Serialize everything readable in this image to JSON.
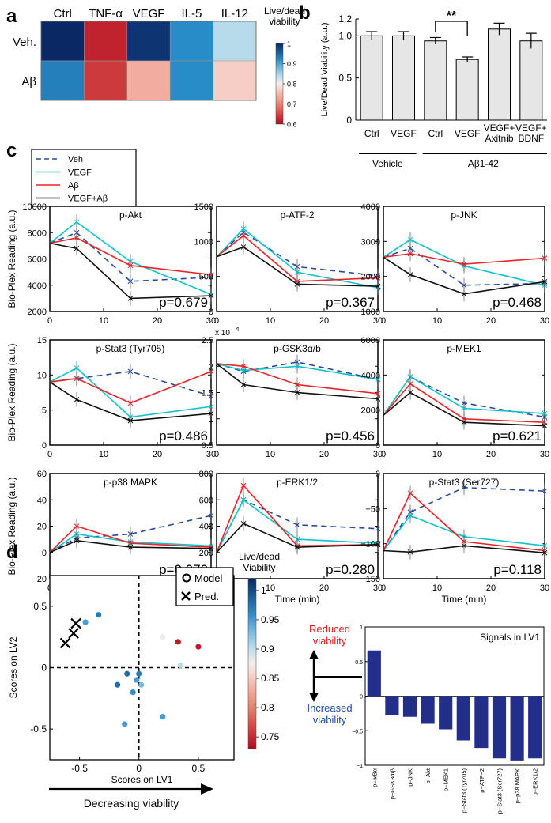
{
  "panel_labels": {
    "a": "a",
    "b": "b",
    "c": "c",
    "d": "d"
  },
  "colors": {
    "veh": "#2c4a9a",
    "vegf": "#12c2c8",
    "abeta": "#e8232a",
    "vegf_abeta": "#111111",
    "bar_grey": "#e6e6e6",
    "lv1_bar": "#232d8a",
    "reduced_red": "#d42020",
    "increased_blue": "#1f4ea0"
  },
  "chart_data": [
    {
      "id": "a",
      "type": "heatmap",
      "columns": [
        "Ctrl",
        "TNF-α",
        "VEGF",
        "IL-5",
        "IL-12"
      ],
      "rows": [
        "Veh.",
        "Aβ"
      ],
      "values": [
        [
          1.0,
          0.62,
          0.99,
          0.92,
          0.84
        ],
        [
          0.93,
          0.64,
          0.74,
          0.92,
          0.77
        ]
      ],
      "colorbar": {
        "title": [
          "Live/dead",
          "viability"
        ],
        "ticks": [
          "1",
          "0.9",
          "0.8",
          "0.7",
          "0.6"
        ],
        "tick_values": [
          1.0,
          0.9,
          0.8,
          0.7,
          0.6
        ],
        "range": [
          0.6,
          1.0
        ]
      }
    },
    {
      "id": "b",
      "type": "bar",
      "categories": [
        "Ctrl",
        "VEGF",
        "Ctrl",
        "VEGF",
        "VEGF+\nAxitnib",
        "VEGF+\nBDNF"
      ],
      "values": [
        1.0,
        1.0,
        0.94,
        0.72,
        1.08,
        0.94
      ],
      "errors": [
        0.05,
        0.05,
        0.04,
        0.03,
        0.07,
        0.09
      ],
      "ylabel": "Live/Dead Viability (a.u.)",
      "ylim": [
        0,
        1.2
      ],
      "yticks": [
        "0",
        "0.5",
        "1.0",
        "1.2"
      ],
      "ytick_values": [
        0,
        0.5,
        1.0,
        1.2
      ],
      "groups": [
        "Vehicle",
        "Aβ1-42"
      ],
      "significance": "**"
    },
    {
      "id": "c",
      "type": "line",
      "legend": [
        "Veh",
        "VEGF",
        "Aβ",
        "VEGF+Aβ"
      ],
      "xlabel": "Time (min)",
      "ylabel": "Bio-Plex Reading (a.u.)",
      "x": [
        0,
        5,
        15,
        30
      ],
      "xticks": [
        "0",
        "10",
        "20",
        "30"
      ],
      "subplots": [
        {
          "title": "p-Akt",
          "p": "p=0.679",
          "ylim": [
            2000,
            10000
          ],
          "yticks": [
            "2000",
            "4000",
            "6000",
            "8000",
            "10000"
          ],
          "ytick_values": [
            2000,
            4000,
            6000,
            8000,
            10000
          ],
          "series": [
            {
              "name": "Veh",
              "values": [
                7200,
                8000,
                4300,
                4600
              ]
            },
            {
              "name": "VEGF",
              "values": [
                7200,
                8800,
                5800,
                3300
              ]
            },
            {
              "name": "Aβ",
              "values": [
                7200,
                7600,
                5500,
                4800
              ]
            },
            {
              "name": "VEGF+Aβ",
              "values": [
                7200,
                6800,
                3000,
                3200
              ]
            }
          ]
        },
        {
          "title": "p-ATF-2",
          "p": "p=0.367",
          "ylim": [
            0,
            1500
          ],
          "yticks": [
            "0",
            "500",
            "1000",
            "1500"
          ],
          "ytick_values": [
            0,
            500,
            1000,
            1500
          ],
          "series": [
            {
              "name": "Veh",
              "values": [
                780,
                1130,
                640,
                510
              ]
            },
            {
              "name": "VEGF",
              "values": [
                780,
                1180,
                560,
                340
              ]
            },
            {
              "name": "Aβ",
              "values": [
                780,
                1080,
                430,
                480
              ]
            },
            {
              "name": "VEGF+Aβ",
              "values": [
                780,
                920,
                390,
                360
              ]
            }
          ]
        },
        {
          "title": "p-JNK",
          "p": "p=0.468",
          "ylim": [
            1000,
            4000
          ],
          "yticks": [
            "1000",
            "2000",
            "3000",
            "4000"
          ],
          "ytick_values": [
            1000,
            2000,
            3000,
            4000
          ],
          "series": [
            {
              "name": "Veh",
              "values": [
                2550,
                2800,
                1750,
                1800
              ]
            },
            {
              "name": "VEGF",
              "values": [
                2550,
                3050,
                2300,
                1750
              ]
            },
            {
              "name": "Aβ",
              "values": [
                2550,
                2650,
                2350,
                2520
              ]
            },
            {
              "name": "VEGF+Aβ",
              "values": [
                2550,
                2050,
                1500,
                1850
              ]
            }
          ]
        },
        {
          "title": "p-Stat3 (Tyr705)",
          "p": "p=0.486",
          "ylim": [
            0,
            15
          ],
          "yticks": [
            "0",
            "5",
            "10",
            "15"
          ],
          "ytick_values": [
            0,
            5,
            10,
            15
          ],
          "series": [
            {
              "name": "Veh",
              "values": [
                9,
                9.5,
                10.5,
                7
              ]
            },
            {
              "name": "VEGF",
              "values": [
                9,
                11,
                4,
                5.5
              ]
            },
            {
              "name": "Aβ",
              "values": [
                9,
                9.5,
                6,
                10.5
              ]
            },
            {
              "name": "VEGF+Aβ",
              "values": [
                9,
                6.5,
                3.5,
                4.5
              ]
            }
          ]
        },
        {
          "title": "p-GSK3α/b",
          "p": "p=0.456",
          "ylim": [
            0.5,
            2.5
          ],
          "yticks": [
            "0.5",
            "1",
            "1.5",
            "2",
            "2.5"
          ],
          "ytick_values": [
            0.5,
            1,
            1.5,
            2,
            2.5
          ],
          "multiplier": "x 10",
          "multiplier_exp": "4",
          "series": [
            {
              "name": "Veh",
              "values": [
                2.05,
                1.9,
                2.08,
                1.75
              ]
            },
            {
              "name": "VEGF",
              "values": [
                2.05,
                1.92,
                2.0,
                1.75
              ]
            },
            {
              "name": "Aβ",
              "values": [
                2.05,
                2.0,
                1.65,
                1.48
              ]
            },
            {
              "name": "VEGF+Aβ",
              "values": [
                2.05,
                1.65,
                1.5,
                1.38
              ]
            }
          ]
        },
        {
          "title": "p-MEK1",
          "p": "p=0.621",
          "ylim": [
            0,
            6000
          ],
          "yticks": [
            "0",
            "2000",
            "4000",
            "6000"
          ],
          "ytick_values": [
            0,
            2000,
            4000,
            6000
          ],
          "series": [
            {
              "name": "Veh",
              "values": [
                1700,
                3900,
                2400,
                1600
              ]
            },
            {
              "name": "VEGF",
              "values": [
                1700,
                3900,
                2100,
                1800
              ]
            },
            {
              "name": "Aβ",
              "values": [
                1700,
                3500,
                1500,
                1300
              ]
            },
            {
              "name": "VEGF+Aβ",
              "values": [
                1700,
                3000,
                1300,
                1100
              ]
            }
          ]
        },
        {
          "title": "p-p38 MAPK",
          "p": "p=0.070",
          "ylim": [
            -20,
            60
          ],
          "yticks": [
            "−20",
            "0",
            "20",
            "40",
            "60"
          ],
          "ytick_values": [
            -20,
            0,
            20,
            40,
            60
          ],
          "series": [
            {
              "name": "Veh",
              "values": [
                0,
                11,
                14,
                28
              ]
            },
            {
              "name": "VEGF",
              "values": [
                0,
                14,
                8,
                5
              ]
            },
            {
              "name": "Aβ",
              "values": [
                0,
                20,
                7,
                4
              ]
            },
            {
              "name": "VEGF+Aβ",
              "values": [
                0,
                9,
                4,
                3
              ]
            }
          ]
        },
        {
          "title": "p-ERK1/2",
          "p": "p=0.280",
          "ylim": [
            0,
            800
          ],
          "yticks": [
            "0",
            "200",
            "400",
            "600",
            "800"
          ],
          "ytick_values": [
            0,
            200,
            400,
            600,
            800
          ],
          "series": [
            {
              "name": "Veh",
              "values": [
                200,
                600,
                410,
                380
              ]
            },
            {
              "name": "VEGF",
              "values": [
                200,
                600,
                300,
                270
              ]
            },
            {
              "name": "Aβ",
              "values": [
                200,
                710,
                250,
                260
              ]
            },
            {
              "name": "VEGF+Aβ",
              "values": [
                200,
                420,
                240,
                260
              ]
            }
          ]
        },
        {
          "title": "p-Stat3 (Ser727)",
          "p": "p=0.118",
          "ylim": [
            -150,
            0
          ],
          "yticks": [
            "−150",
            "−100",
            "−50",
            "0"
          ],
          "ytick_values": [
            -150,
            -100,
            -50,
            0
          ],
          "series": [
            {
              "name": "Veh",
              "values": [
                -110,
                -55,
                -20,
                -25
              ]
            },
            {
              "name": "VEGF",
              "values": [
                -110,
                -60,
                -90,
                -103
              ]
            },
            {
              "name": "Aβ",
              "values": [
                -110,
                -28,
                -97,
                -110
              ]
            },
            {
              "name": "VEGF+Aβ",
              "values": [
                -110,
                -112,
                -103,
                -113
              ]
            }
          ]
        }
      ]
    },
    {
      "id": "d-scatter",
      "type": "scatter",
      "xlabel": "Scores on LV1",
      "ylabel": "Scores on LV2",
      "xlim": [
        -0.75,
        0.8
      ],
      "ylim": [
        -0.75,
        0.75
      ],
      "xticks": [
        "-0.5",
        "0",
        "0.5"
      ],
      "xtick_values": [
        -0.5,
        0,
        0.5
      ],
      "yticks": [
        "-0.5",
        "0",
        "0.5"
      ],
      "ytick_values": [
        -0.5,
        0,
        0.5
      ],
      "legend": [
        "Model",
        "Pred."
      ],
      "model_points": [
        {
          "x": -0.45,
          "y": 0.37,
          "v": 0.95
        },
        {
          "x": -0.34,
          "y": 0.43,
          "v": 0.97
        },
        {
          "x": -0.18,
          "y": -0.14,
          "v": 0.98
        },
        {
          "x": -0.1,
          "y": -0.05,
          "v": 0.98
        },
        {
          "x": -0.05,
          "y": -0.2,
          "v": 0.96
        },
        {
          "x": 0.0,
          "y": -0.05,
          "v": 0.97
        },
        {
          "x": -0.02,
          "y": -0.1,
          "v": 0.95
        },
        {
          "x": 0.02,
          "y": -0.14,
          "v": 0.93
        },
        {
          "x": 0.2,
          "y": -0.4,
          "v": 0.95
        },
        {
          "x": -0.12,
          "y": -0.46,
          "v": 0.95
        },
        {
          "x": 0.2,
          "y": 0.25,
          "v": 0.88
        },
        {
          "x": 0.33,
          "y": 0.21,
          "v": 0.74
        },
        {
          "x": 0.35,
          "y": 0.02,
          "v": 0.9
        },
        {
          "x": 0.5,
          "y": 0.17,
          "v": 0.74
        }
      ],
      "pred_points": [
        {
          "x": -0.62,
          "y": 0.2
        },
        {
          "x": -0.55,
          "y": 0.28
        },
        {
          "x": -0.53,
          "y": 0.36
        }
      ],
      "colorbar": {
        "title": [
          "Live/dead",
          "Viability"
        ],
        "ticks": [
          "1",
          "0.95",
          "0.9",
          "0.85",
          "0.8",
          "0.75"
        ],
        "tick_values": [
          1,
          0.95,
          0.9,
          0.85,
          0.8,
          0.75
        ],
        "range": [
          0.73,
          1.02
        ]
      },
      "arrow_label": "Decreasing viability"
    },
    {
      "id": "d-bar",
      "type": "bar",
      "title": "Signals in LV1",
      "categories": [
        "p−IκBα",
        "p−GSK3α/β",
        "p−JNK",
        "p−Akt",
        "p−MEK1",
        "p−Stat3 (Tyr705)",
        "p−ATF−2",
        "p−Stat3 (Ser727)",
        "p−p38 MAPK",
        "p−ERK1/2"
      ],
      "values": [
        0.66,
        -0.28,
        -0.3,
        -0.4,
        -0.48,
        -0.64,
        -0.75,
        -0.9,
        -0.93,
        -0.9
      ],
      "ylim": [
        -1,
        1
      ],
      "yticks": [
        "1",
        "0.5",
        "0",
        "−0.5",
        "−1"
      ],
      "ytick_values": [
        1,
        0.5,
        0,
        -0.5,
        -1
      ],
      "up_label": [
        "Reduced",
        "viability"
      ],
      "down_label": [
        "Increased",
        "viability"
      ]
    }
  ]
}
